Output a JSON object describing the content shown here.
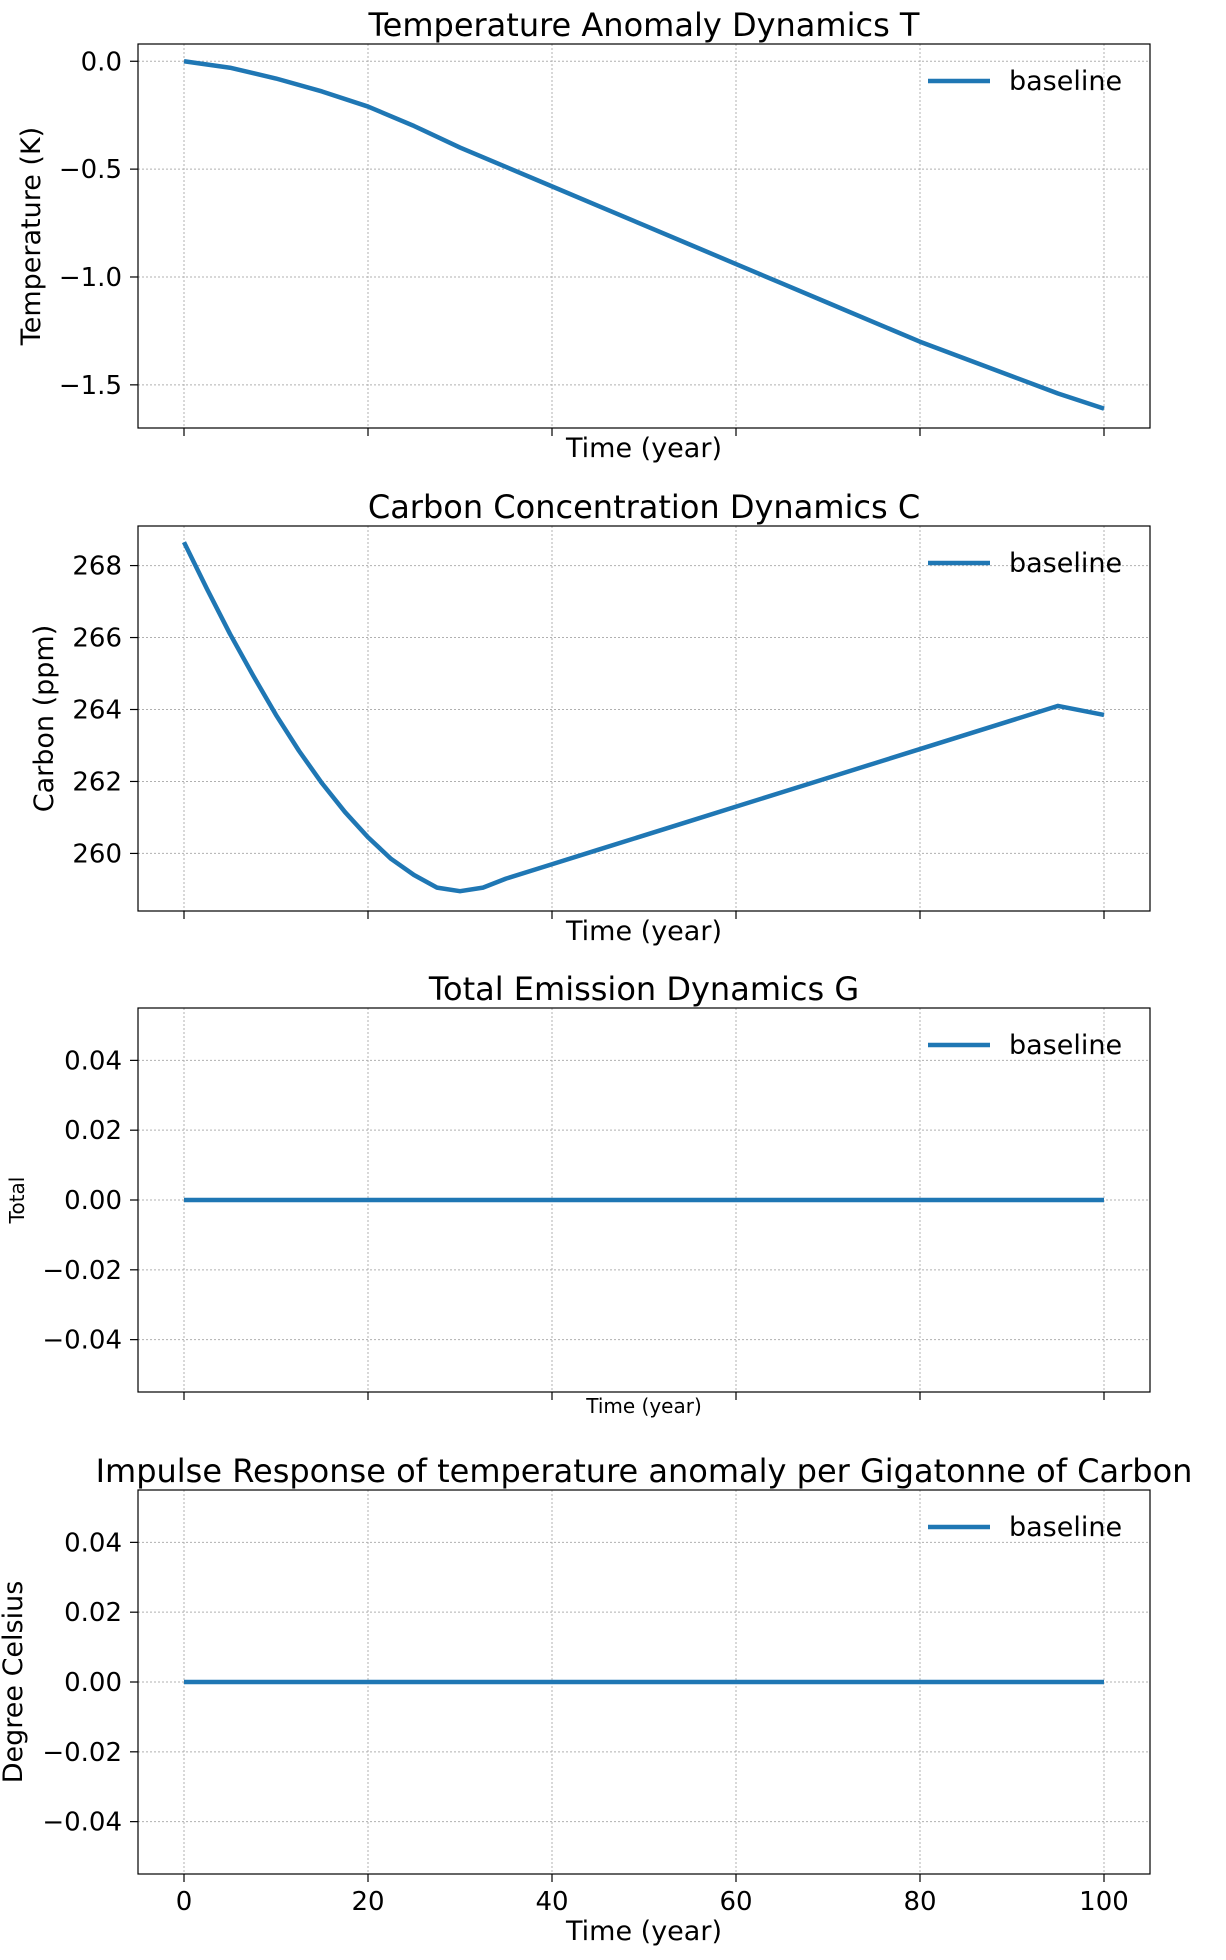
{
  "chart_data": [
    {
      "type": "line",
      "title": "Temperature Anomaly Dynamics T",
      "xlabel": "Time (year)",
      "ylabel": "Temperature (K)",
      "xlim": [
        -5,
        105
      ],
      "ylim": [
        -1.7,
        0.08
      ],
      "x_ticks": [
        0,
        20,
        40,
        60,
        80,
        100
      ],
      "x_tick_labels_shown": false,
      "y_ticks": [
        0.0,
        -0.5,
        -1.0,
        -1.5
      ],
      "y_tick_labels": [
        "0.0",
        "−0.5",
        "−1.0",
        "−1.5"
      ],
      "grid": true,
      "legend_position": "top-right",
      "series": [
        {
          "name": "baseline",
          "color": "#1f77b4",
          "x": [
            0,
            5,
            10,
            15,
            20,
            25,
            30,
            35,
            40,
            45,
            50,
            55,
            60,
            65,
            70,
            75,
            80,
            85,
            90,
            95,
            100
          ],
          "values": [
            0.0,
            -0.03,
            -0.08,
            -0.14,
            -0.21,
            -0.3,
            -0.4,
            -0.49,
            -0.58,
            -0.67,
            -0.76,
            -0.85,
            -0.94,
            -1.03,
            -1.12,
            -1.21,
            -1.3,
            -1.38,
            -1.46,
            -1.54,
            -1.61
          ]
        }
      ]
    },
    {
      "type": "line",
      "title": "Carbon Concentration Dynamics C",
      "xlabel": "Time (year)",
      "ylabel": "Carbon (ppm)",
      "xlim": [
        -5,
        105
      ],
      "ylim": [
        258.4,
        269.1
      ],
      "x_ticks": [
        0,
        20,
        40,
        60,
        80,
        100
      ],
      "x_tick_labels_shown": false,
      "y_ticks": [
        260,
        262,
        264,
        266,
        268
      ],
      "y_tick_labels": [
        "260",
        "262",
        "264",
        "266",
        "268"
      ],
      "grid": true,
      "legend_position": "top-right",
      "series": [
        {
          "name": "baseline",
          "color": "#1f77b4",
          "x": [
            0,
            2.5,
            5,
            7.5,
            10,
            12.5,
            15,
            17.5,
            20,
            22.5,
            25,
            27.5,
            30,
            32.5,
            35,
            40,
            45,
            50,
            55,
            60,
            65,
            70,
            75,
            80,
            85,
            90,
            95,
            100
          ],
          "values": [
            268.65,
            267.35,
            266.1,
            264.95,
            263.85,
            262.85,
            261.95,
            261.15,
            260.45,
            259.85,
            259.4,
            259.05,
            258.95,
            259.05,
            259.3,
            259.7,
            260.1,
            260.5,
            260.9,
            261.3,
            261.7,
            262.1,
            262.5,
            262.9,
            263.3,
            263.7,
            264.1,
            263.85
          ]
        }
      ]
    },
    {
      "type": "line",
      "title": "Total Emission Dynamics G",
      "xlabel": "Time (year)",
      "ylabel": "Total",
      "xlim": [
        -5,
        105
      ],
      "ylim": [
        -0.055,
        0.055
      ],
      "x_ticks": [
        0,
        20,
        40,
        60,
        80,
        100
      ],
      "x_tick_labels_shown": false,
      "y_ticks": [
        0.04,
        0.02,
        0.0,
        -0.02,
        -0.04
      ],
      "y_tick_labels": [
        "0.04",
        "0.02",
        "0.00",
        "−0.02",
        "−0.04"
      ],
      "grid": true,
      "legend_position": "top-right",
      "series": [
        {
          "name": "baseline",
          "color": "#1f77b4",
          "x": [
            0,
            100
          ],
          "values": [
            0.0,
            0.0
          ]
        }
      ]
    },
    {
      "type": "line",
      "title": "Impulse Response of temperature anomaly per Gigatonne of Carbon",
      "xlabel": "Time (year)",
      "ylabel": "Degree Celsius",
      "xlim": [
        -5,
        105
      ],
      "ylim": [
        -0.055,
        0.055
      ],
      "x_ticks": [
        0,
        20,
        40,
        60,
        80,
        100
      ],
      "x_tick_labels_shown": true,
      "x_tick_labels": [
        "0",
        "20",
        "40",
        "60",
        "80",
        "100"
      ],
      "y_ticks": [
        0.04,
        0.02,
        0.0,
        -0.02,
        -0.04
      ],
      "y_tick_labels": [
        "0.04",
        "0.02",
        "0.00",
        "−0.02",
        "−0.04"
      ],
      "grid": true,
      "legend_position": "top-right",
      "series": [
        {
          "name": "baseline",
          "color": "#1f77b4",
          "x": [
            0,
            100
          ],
          "values": [
            0.0,
            0.0
          ]
        }
      ]
    }
  ]
}
